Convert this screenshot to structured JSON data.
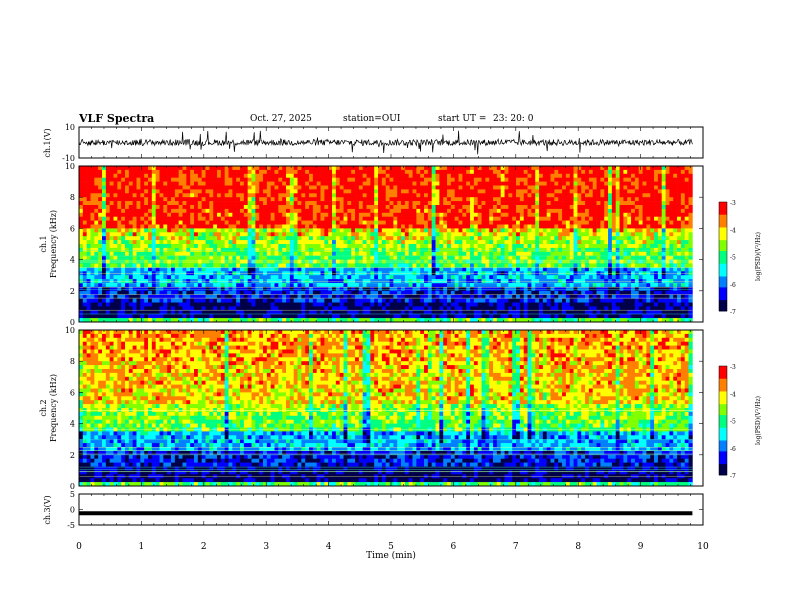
{
  "header": {
    "title": "VLF Spectra",
    "date": "Oct. 27, 2025",
    "station": "station=OUI",
    "start_ut_label": "start  UT  =",
    "start_ut_value": "23: 20: 0"
  },
  "chart_data": [
    {
      "type": "line",
      "ylabel": "ch.1(V)",
      "ylim": [
        -10,
        10
      ],
      "yticks": [
        "10",
        "-10"
      ],
      "series": [
        {
          "values_description_mean": 0
        }
      ],
      "xlim": [
        0,
        10
      ]
    },
    {
      "type": "heatmap",
      "ylabel_top": "ch.1",
      "ylabel": "Frequency (kHz)",
      "ylim": [
        0,
        10
      ],
      "yticks": [
        "0",
        "2",
        "4",
        "6",
        "8",
        "10"
      ],
      "xlim": [
        0,
        10
      ],
      "data_extent_min": 9.83,
      "colorbar": {
        "label": "log(PSD)(V²/Hz)",
        "range": [
          -7,
          -3
        ],
        "ticks": [
          "-3",
          "-4",
          "-5",
          "-6",
          "-7"
        ]
      }
    },
    {
      "type": "heatmap",
      "ylabel_top": "ch.2",
      "ylabel": "Frequency (kHz)",
      "ylim": [
        0,
        10
      ],
      "yticks": [
        "0",
        "2",
        "4",
        "6",
        "8",
        "10"
      ],
      "xlim": [
        0,
        10
      ],
      "data_extent_min": 9.83,
      "colorbar": {
        "label": "log(PSD)(V²/Hz)",
        "range": [
          -7,
          -3
        ],
        "ticks": [
          "-3",
          "-4",
          "-5",
          "-6",
          "-7"
        ]
      }
    },
    {
      "type": "line",
      "ylabel": "ch.3(V)",
      "ylim": [
        -5,
        5
      ],
      "yticks": [
        "5",
        "0",
        "-5"
      ],
      "series": [
        {
          "constant_value": -1.2
        }
      ],
      "xlim": [
        0,
        10
      ]
    }
  ],
  "xaxis": {
    "label": "Time (min)",
    "ticks": [
      "0",
      "1",
      "2",
      "3",
      "4",
      "5",
      "6",
      "7",
      "8",
      "9",
      "10"
    ]
  },
  "colormap": [
    "#00004a",
    "#0000ff",
    "#0080ff",
    "#00ffff",
    "#00ff80",
    "#80ff00",
    "#ffff00",
    "#ff8000",
    "#ff0000"
  ]
}
